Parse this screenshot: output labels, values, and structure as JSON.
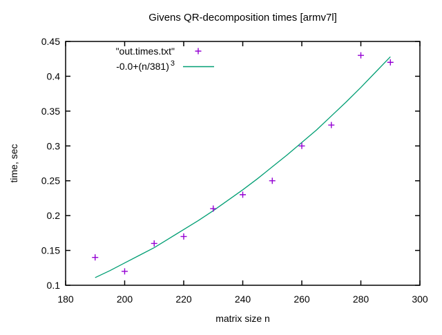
{
  "title": "Givens QR-decomposition times [armv7l]",
  "legend": {
    "points_label": "\"out.times.txt\"",
    "curve_label_base": "-0.0+(n/381)",
    "curve_label_sup": "3"
  },
  "colors": {
    "points": "#9400d3",
    "curve": "#009e73",
    "axis": "#000000",
    "background": "#ffffff"
  },
  "chart_data": {
    "type": "scatter",
    "title": "Givens QR-decomposition times [armv7l]",
    "xlabel": "matrix size n",
    "ylabel": "time, sec",
    "xlim": [
      180,
      300
    ],
    "ylim": [
      0.1,
      0.45
    ],
    "grid": false,
    "legend_position": "top-left-inside",
    "x_ticks": [
      180,
      200,
      220,
      240,
      260,
      280,
      300
    ],
    "x_tick_labels": [
      "180",
      "200",
      "220",
      "240",
      "260",
      "280",
      "300"
    ],
    "y_ticks": [
      0.1,
      0.15,
      0.2,
      0.25,
      0.3,
      0.35,
      0.4,
      0.45
    ],
    "y_tick_labels": [
      "0.1",
      "0.15",
      "0.2",
      "0.25",
      "0.3",
      "0.35",
      "0.4",
      "0.45"
    ],
    "series": [
      {
        "name": "\"out.times.txt\"",
        "type": "scatter",
        "marker": "plus",
        "color": "#9400d3",
        "x": [
          190,
          200,
          210,
          220,
          230,
          240,
          250,
          260,
          270,
          280,
          290
        ],
        "y": [
          0.14,
          0.12,
          0.16,
          0.17,
          0.21,
          0.23,
          0.25,
          0.3,
          0.33,
          0.43,
          0.42
        ]
      },
      {
        "name": "-0.0+(n/381)^3",
        "type": "line",
        "color": "#009e73",
        "x": [
          190,
          195,
          200,
          205,
          210,
          215,
          220,
          225,
          230,
          235,
          240,
          245,
          250,
          255,
          260,
          265,
          270,
          275,
          280,
          285,
          290
        ],
        "y": [
          0.111,
          0.121,
          0.132,
          0.143,
          0.154,
          0.167,
          0.18,
          0.193,
          0.207,
          0.222,
          0.237,
          0.253,
          0.27,
          0.287,
          0.305,
          0.323,
          0.343,
          0.363,
          0.384,
          0.406,
          0.428
        ]
      }
    ]
  }
}
